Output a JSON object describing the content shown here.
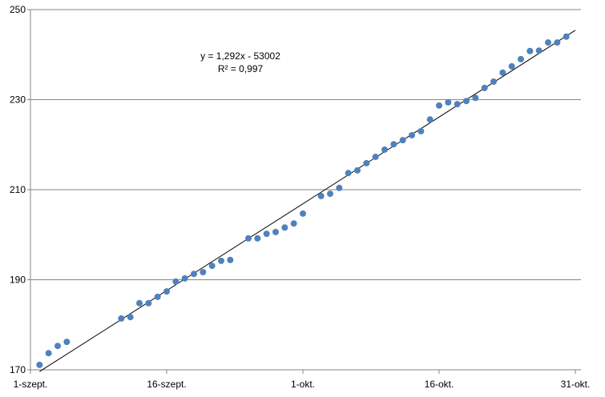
{
  "chart_data": {
    "type": "scatter",
    "x": [
      "09-02",
      "09-03",
      "09-04",
      "09-05",
      "09-11",
      "09-12",
      "09-13",
      "09-14",
      "09-15",
      "09-16",
      "09-17",
      "09-18",
      "09-19",
      "09-20",
      "09-21",
      "09-22",
      "09-23",
      "09-25",
      "09-26",
      "09-27",
      "09-28",
      "09-29",
      "09-30",
      "10-01",
      "10-03",
      "10-04",
      "10-05",
      "10-06",
      "10-07",
      "10-08",
      "10-09",
      "10-10",
      "10-11",
      "10-12",
      "10-13",
      "10-14",
      "10-15",
      "10-16",
      "10-17",
      "10-18",
      "10-19",
      "10-20",
      "10-21",
      "10-22",
      "10-23",
      "10-24",
      "10-25",
      "10-26",
      "10-27",
      "10-28",
      "10-29",
      "10-30"
    ],
    "values": [
      171.1,
      173.7,
      175.3,
      176.2,
      181.4,
      181.7,
      184.8,
      184.8,
      186.2,
      187.4,
      189.6,
      190.3,
      191.3,
      191.7,
      193.1,
      194.2,
      194.4,
      199.2,
      199.2,
      200.2,
      200.6,
      201.6,
      202.5,
      204.7,
      208.6,
      209.1,
      210.4,
      213.7,
      214.3,
      215.9,
      217.3,
      218.9,
      220.1,
      221.0,
      222.1,
      223.0,
      225.6,
      228.7,
      229.4,
      229.0,
      229.7,
      230.4,
      232.6,
      234.0,
      236.0,
      237.4,
      239.0,
      240.8,
      240.9,
      242.7,
      242.7,
      244.0
    ],
    "color": "#4f81bd",
    "xlim": [
      "09-01",
      "10-31"
    ],
    "xticks": [
      {
        "value": "09-01",
        "label": "1-szept."
      },
      {
        "value": "09-16",
        "label": "16-szept."
      },
      {
        "value": "10-01",
        "label": "1-okt."
      },
      {
        "value": "10-16",
        "label": "16-okt."
      },
      {
        "value": "10-31",
        "label": "31-okt."
      }
    ],
    "ylim": [
      170,
      250
    ],
    "yticks": [
      170,
      190,
      210,
      230,
      250
    ],
    "grid": true,
    "trendline": true,
    "annotations": [
      "y = 1,292x - 53002",
      "R² = 0,997"
    ]
  }
}
